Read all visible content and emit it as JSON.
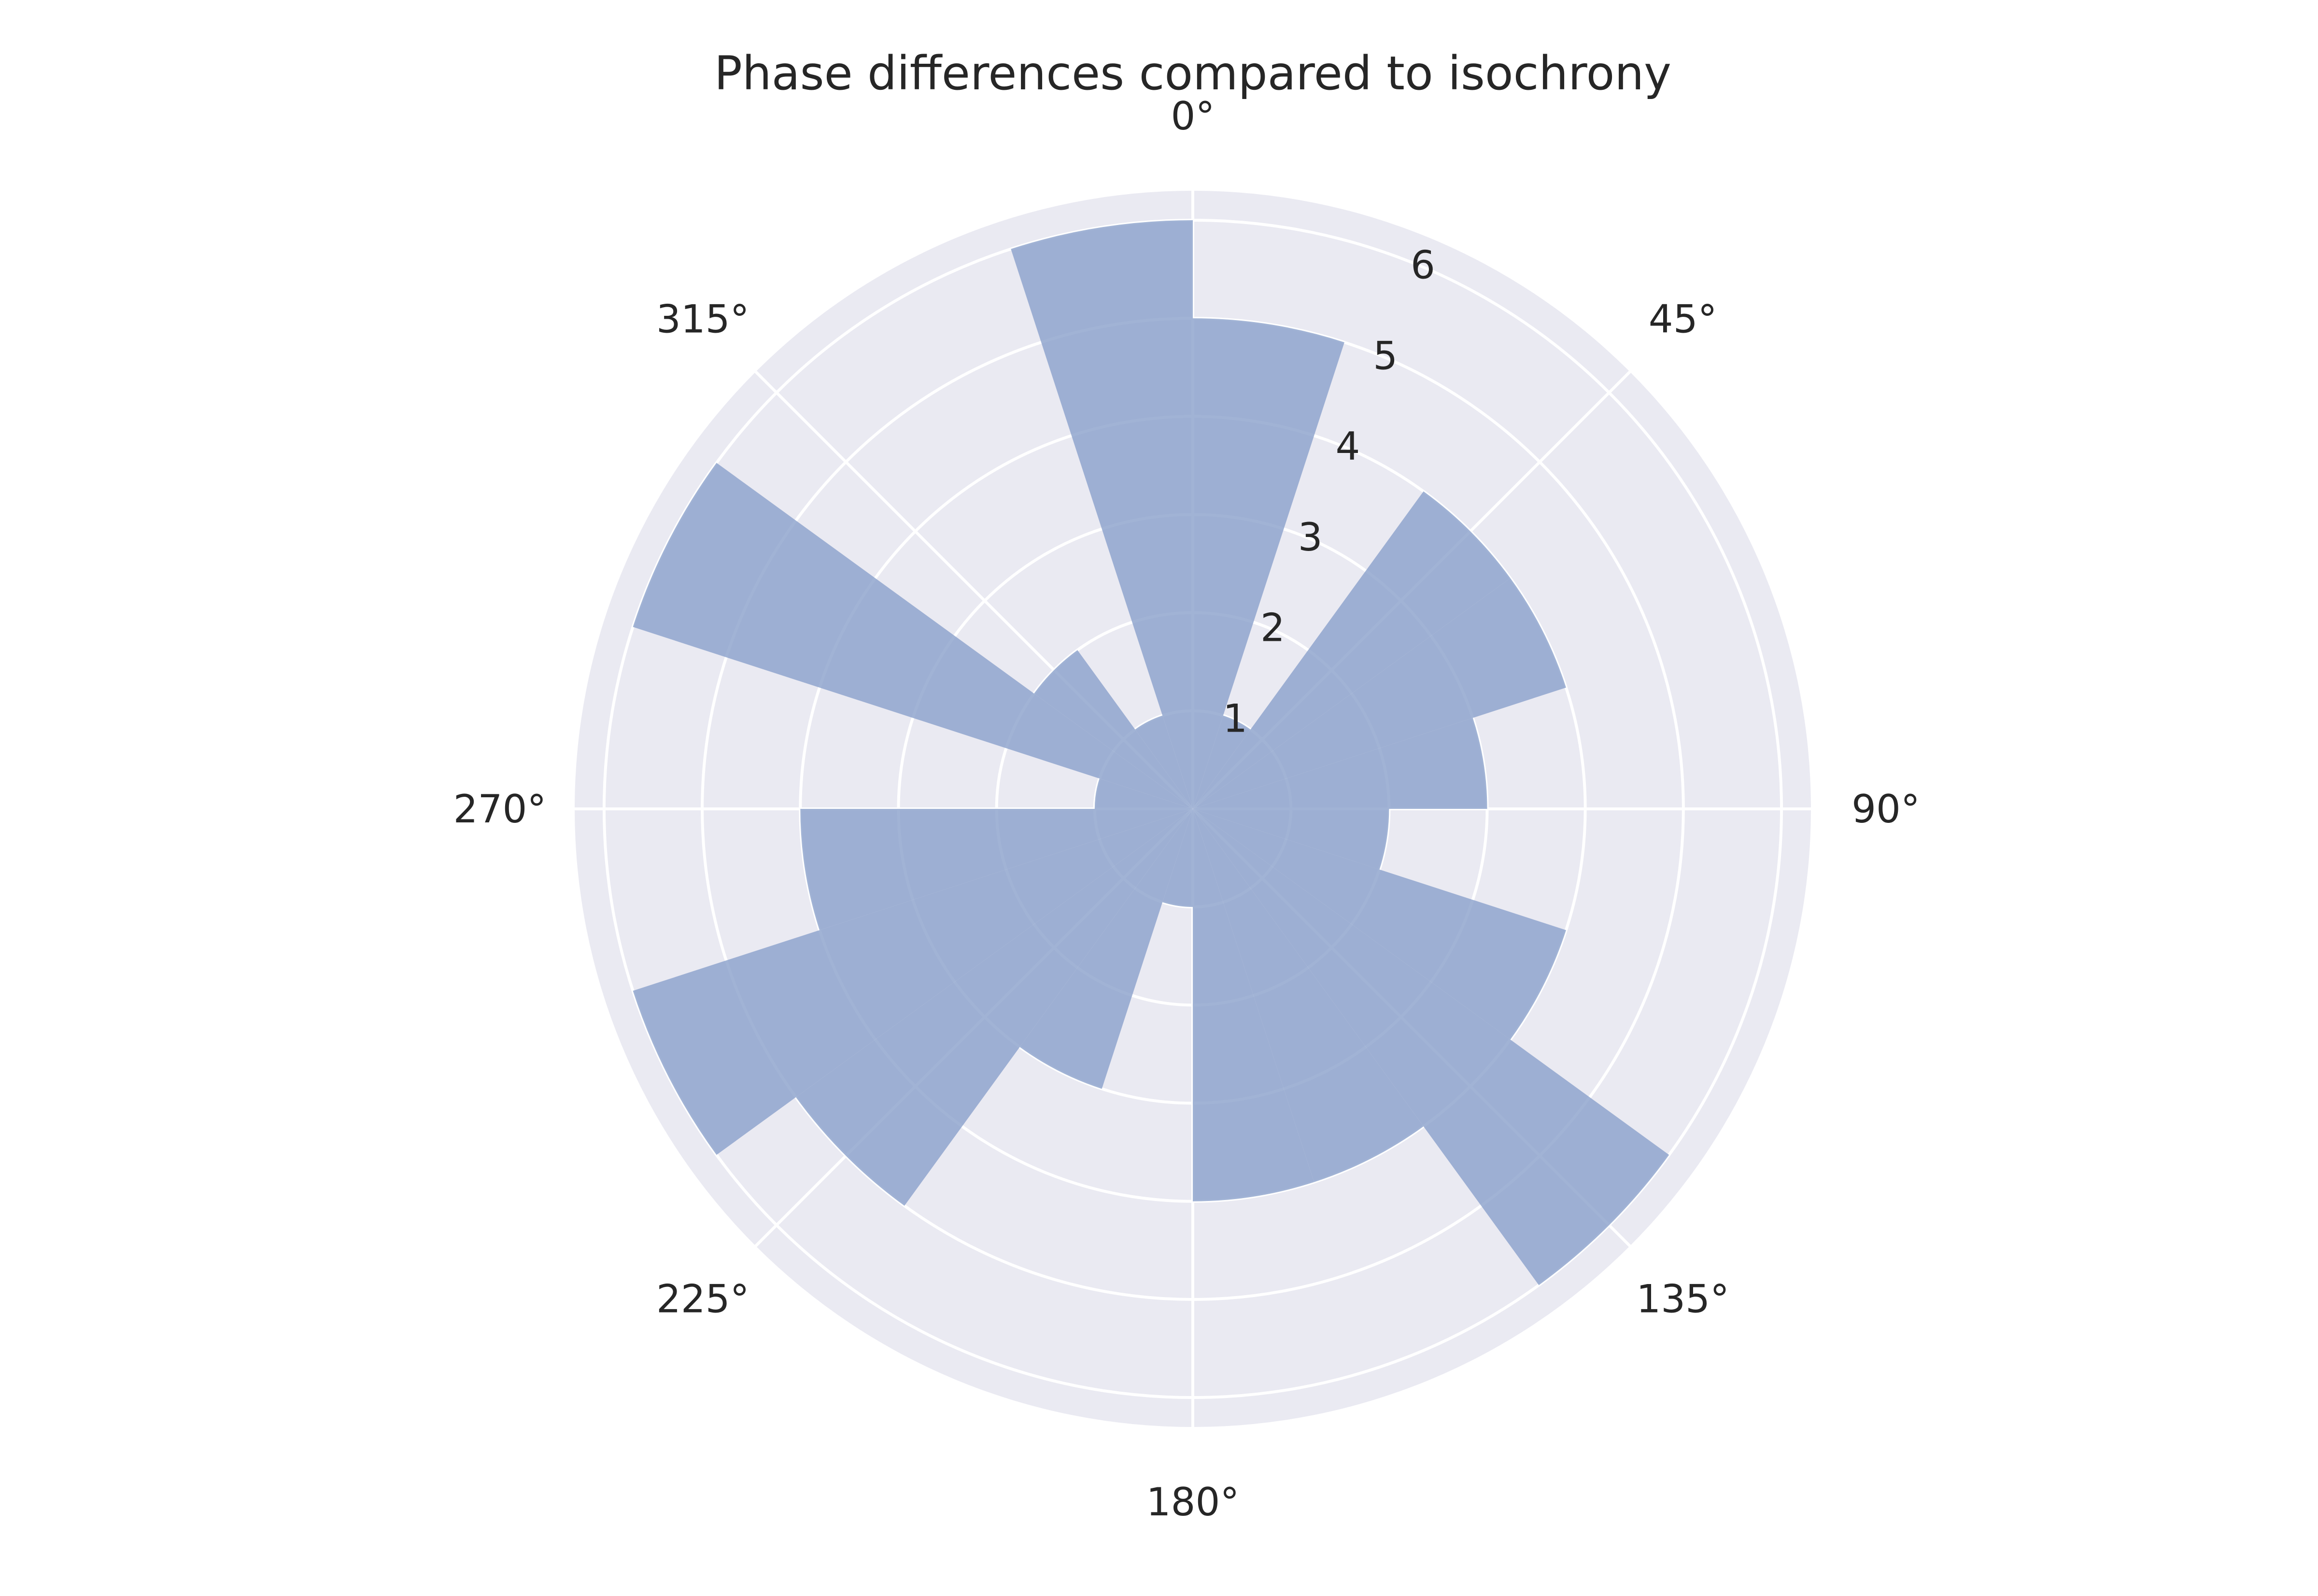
{
  "chart_data": {
    "type": "bar",
    "projection": "polar",
    "title": "Phase differences compared to isochrony",
    "theta_direction": "clockwise",
    "theta_zero_location": "top",
    "bin_width_deg": 18,
    "categories": [
      0,
      18,
      36,
      54,
      72,
      90,
      108,
      126,
      144,
      162,
      180,
      198,
      216,
      234,
      252,
      270,
      288,
      306,
      324,
      342
    ],
    "values": [
      5,
      1,
      4,
      4,
      3,
      2,
      4,
      6,
      4,
      4,
      1,
      3,
      5,
      6,
      4,
      1,
      6,
      2,
      1,
      6
    ],
    "theta_ticks": [
      "0°",
      "45°",
      "90°",
      "135°",
      "180°",
      "225°",
      "270°",
      "315°"
    ],
    "theta_tick_values": [
      0,
      45,
      90,
      135,
      180,
      225,
      270,
      315
    ],
    "r_ticks": [
      "1",
      "2",
      "3",
      "4",
      "5",
      "6"
    ],
    "r_tick_values": [
      1,
      2,
      3,
      4,
      5,
      6
    ],
    "rlim": [
      0,
      6.3
    ],
    "grid": true,
    "colors": {
      "bar": "#8ca2cc",
      "background": "#eaeaf2",
      "grid": "#ffffff"
    }
  }
}
